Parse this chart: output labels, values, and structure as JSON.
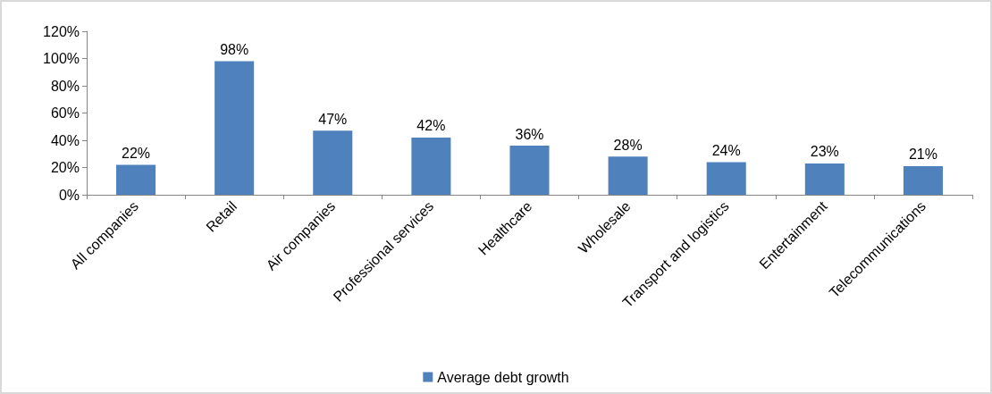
{
  "chart_data": {
    "type": "bar",
    "categories": [
      "All companies",
      "Retail",
      "Air companies",
      "Professional services",
      "Healthcare",
      "Wholesale",
      "Transport and logistics",
      "Entertainment",
      "Telecommunications"
    ],
    "series": [
      {
        "name": "Average debt growth",
        "color": "#4f81bd",
        "values": [
          22,
          98,
          47,
          42,
          36,
          28,
          24,
          23,
          21
        ],
        "value_labels": [
          "22%",
          "98%",
          "47%",
          "42%",
          "36%",
          "28%",
          "24%",
          "23%",
          "21%"
        ]
      }
    ],
    "ylim": [
      0,
      120
    ],
    "yticks": [
      {
        "value": 0,
        "label": "0%"
      },
      {
        "value": 20,
        "label": "20%"
      },
      {
        "value": 40,
        "label": "40%"
      },
      {
        "value": 60,
        "label": "60%"
      },
      {
        "value": 80,
        "label": "80%"
      },
      {
        "value": 100,
        "label": "100%"
      },
      {
        "value": 120,
        "label": "120%"
      }
    ],
    "grid": false,
    "legend": "bottom"
  }
}
